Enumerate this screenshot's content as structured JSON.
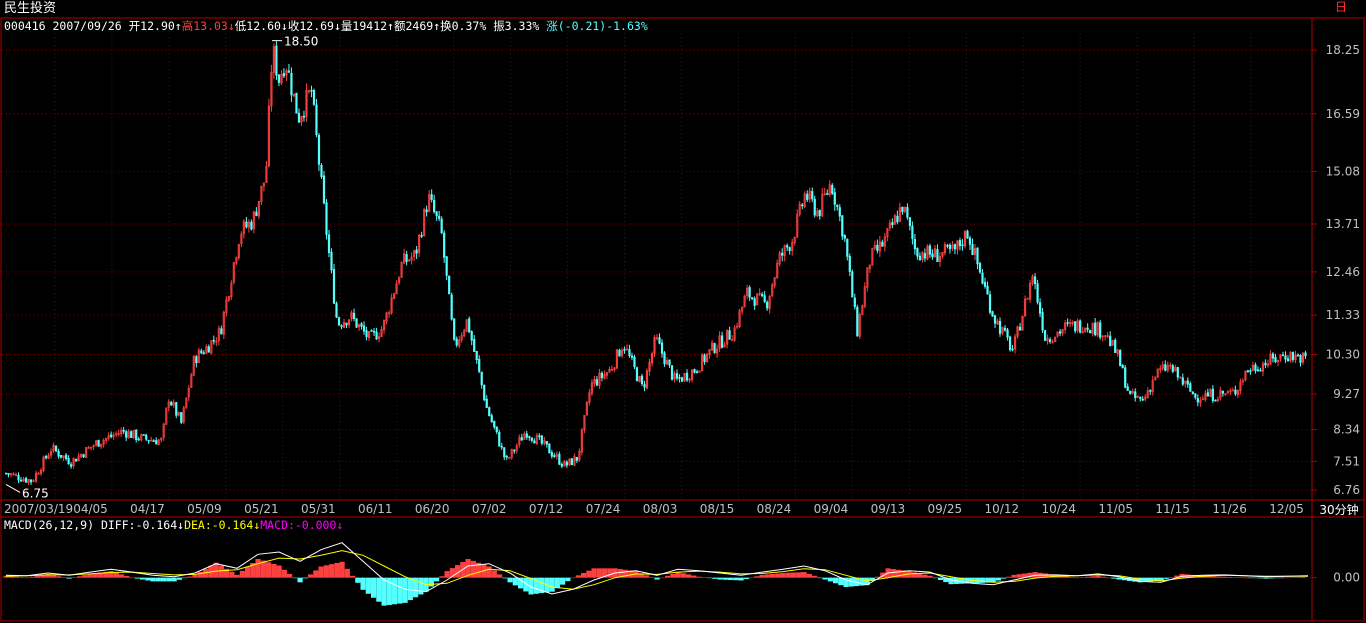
{
  "header": {
    "stock_name": "民生投资",
    "code": "000416",
    "date": "2007/09/26",
    "open_label": "开12.90",
    "high_label": "高13.03",
    "low_label": "低12.60",
    "close_label": "收12.69",
    "volume_label": "量19412",
    "amount_label": "额2469",
    "turnover_label": "换0.37%",
    "amplitude_label": "振3.33%",
    "change_label": "涨(-0.21)-1.63%",
    "arrow_up": "↑",
    "arrow_down": "↓"
  },
  "macd_header": {
    "name": "MACD(26,12,9)",
    "diff_label": "DIFF:-0.164",
    "dea_label": "DEA:-0.164",
    "macd_label": "MACD:-0.000",
    "arrow_down": "↓"
  },
  "controls": {
    "corner_label": "日",
    "period_label": "30分钟"
  },
  "colors": {
    "background": "#000000",
    "frame": "#b00000",
    "grid": "#7a0000",
    "up": "#ff4040",
    "down": "#54ffff",
    "axis_text": "#c0c0c0",
    "diff_line": "#ffffff",
    "dea_line": "#ffff00",
    "macd_label": "#ff00ff",
    "header_yellow": "#ffff00",
    "header_cyan": "#54ffff"
  },
  "chart_data": [
    {
      "type": "candlestick",
      "ylim": [
        6.5,
        18.7
      ],
      "y_ticks": [
        18.25,
        16.59,
        15.08,
        13.71,
        12.46,
        11.33,
        10.3,
        9.27,
        8.34,
        7.51,
        6.76
      ],
      "y_tick_labels": [
        "18.25",
        "16.59",
        "15.08",
        "13.71",
        "12.46",
        "11.33",
        "10.30",
        "9.27",
        "8.34",
        "7.51",
        "6.76"
      ],
      "x_tick_labels": [
        "2007/03/19",
        "04/05",
        "04/17",
        "05/09",
        "05/21",
        "05/31",
        "06/11",
        "06/20",
        "07/02",
        "07/12",
        "07/24",
        "08/03",
        "08/15",
        "08/24",
        "09/04",
        "09/13",
        "09/25",
        "10/12",
        "10/24",
        "11/05",
        "11/15",
        "11/26",
        "12/05"
      ],
      "annotations": [
        {
          "text": "18.50",
          "value": 18.5,
          "date": "05/21"
        },
        {
          "text": "6.75",
          "value": 6.75,
          "date": "2007/03/19"
        }
      ],
      "path": [
        {
          "x": 0,
          "y": 7.2
        },
        {
          "x": 0.02,
          "y": 7.0
        },
        {
          "x": 0.035,
          "y": 7.85
        },
        {
          "x": 0.05,
          "y": 7.5
        },
        {
          "x": 0.07,
          "y": 8.0
        },
        {
          "x": 0.09,
          "y": 8.3
        },
        {
          "x": 0.105,
          "y": 8.1
        },
        {
          "x": 0.12,
          "y": 8.05
        },
        {
          "x": 0.125,
          "y": 9.2
        },
        {
          "x": 0.135,
          "y": 8.5
        },
        {
          "x": 0.145,
          "y": 10.2
        },
        {
          "x": 0.155,
          "y": 10.5
        },
        {
          "x": 0.165,
          "y": 10.9
        },
        {
          "x": 0.18,
          "y": 13.5
        },
        {
          "x": 0.19,
          "y": 13.8
        },
        {
          "x": 0.2,
          "y": 15.0
        },
        {
          "x": 0.205,
          "y": 18.3
        },
        {
          "x": 0.21,
          "y": 17.5
        },
        {
          "x": 0.215,
          "y": 18.0
        },
        {
          "x": 0.225,
          "y": 16.5
        },
        {
          "x": 0.235,
          "y": 17.2
        },
        {
          "x": 0.245,
          "y": 14.0
        },
        {
          "x": 0.25,
          "y": 12.5
        },
        {
          "x": 0.255,
          "y": 11.1
        },
        {
          "x": 0.265,
          "y": 11.3
        },
        {
          "x": 0.28,
          "y": 10.7
        },
        {
          "x": 0.29,
          "y": 11.0
        },
        {
          "x": 0.305,
          "y": 12.7
        },
        {
          "x": 0.315,
          "y": 12.9
        },
        {
          "x": 0.325,
          "y": 14.4
        },
        {
          "x": 0.335,
          "y": 13.5
        },
        {
          "x": 0.345,
          "y": 10.5
        },
        {
          "x": 0.355,
          "y": 11.2
        },
        {
          "x": 0.37,
          "y": 8.9
        },
        {
          "x": 0.385,
          "y": 7.5
        },
        {
          "x": 0.4,
          "y": 8.3
        },
        {
          "x": 0.415,
          "y": 7.9
        },
        {
          "x": 0.43,
          "y": 7.4
        },
        {
          "x": 0.44,
          "y": 7.6
        },
        {
          "x": 0.45,
          "y": 9.5
        },
        {
          "x": 0.465,
          "y": 9.9
        },
        {
          "x": 0.475,
          "y": 10.6
        },
        {
          "x": 0.49,
          "y": 9.4
        },
        {
          "x": 0.5,
          "y": 10.7
        },
        {
          "x": 0.515,
          "y": 9.6
        },
        {
          "x": 0.53,
          "y": 9.9
        },
        {
          "x": 0.545,
          "y": 10.5
        },
        {
          "x": 0.56,
          "y": 10.9
        },
        {
          "x": 0.57,
          "y": 11.9
        },
        {
          "x": 0.585,
          "y": 11.6
        },
        {
          "x": 0.595,
          "y": 12.8
        },
        {
          "x": 0.605,
          "y": 13.3
        },
        {
          "x": 0.615,
          "y": 14.5
        },
        {
          "x": 0.625,
          "y": 14.0
        },
        {
          "x": 0.635,
          "y": 14.8
        },
        {
          "x": 0.645,
          "y": 13.4
        },
        {
          "x": 0.655,
          "y": 10.9
        },
        {
          "x": 0.665,
          "y": 12.8
        },
        {
          "x": 0.675,
          "y": 13.2
        },
        {
          "x": 0.69,
          "y": 14.2
        },
        {
          "x": 0.7,
          "y": 13.0
        },
        {
          "x": 0.715,
          "y": 12.9
        },
        {
          "x": 0.73,
          "y": 13.0
        },
        {
          "x": 0.74,
          "y": 13.5
        },
        {
          "x": 0.75,
          "y": 12.4
        },
        {
          "x": 0.76,
          "y": 11.3
        },
        {
          "x": 0.775,
          "y": 10.4
        },
        {
          "x": 0.79,
          "y": 12.4
        },
        {
          "x": 0.8,
          "y": 10.7
        },
        {
          "x": 0.815,
          "y": 11.0
        },
        {
          "x": 0.83,
          "y": 11.1
        },
        {
          "x": 0.845,
          "y": 10.9
        },
        {
          "x": 0.855,
          "y": 10.3
        },
        {
          "x": 0.865,
          "y": 9.2
        },
        {
          "x": 0.875,
          "y": 9.1
        },
        {
          "x": 0.885,
          "y": 9.8
        },
        {
          "x": 0.895,
          "y": 10.0
        },
        {
          "x": 0.905,
          "y": 9.6
        },
        {
          "x": 0.915,
          "y": 9.2
        },
        {
          "x": 0.93,
          "y": 9.25
        },
        {
          "x": 0.945,
          "y": 9.3
        },
        {
          "x": 0.955,
          "y": 9.9
        },
        {
          "x": 0.97,
          "y": 10.1
        },
        {
          "x": 0.985,
          "y": 10.3
        },
        {
          "x": 1.0,
          "y": 10.2
        }
      ]
    },
    {
      "type": "macd",
      "ylim": [
        -0.8,
        1.0
      ],
      "y_ticks": [
        0.0
      ],
      "y_tick_labels": [
        "0.00"
      ],
      "series": [
        {
          "name": "DIFF",
          "values": [
            0.05,
            0.04,
            0.1,
            0.05,
            0.12,
            0.18,
            0.12,
            0.05,
            0.02,
            0.1,
            0.3,
            0.2,
            0.5,
            0.55,
            0.35,
            0.6,
            0.75,
            0.35,
            -0.05,
            -0.25,
            -0.3,
            -0.05,
            0.25,
            0.3,
            0.1,
            -0.2,
            -0.35,
            -0.25,
            -0.05,
            0.1,
            0.15,
            0.05,
            0.18,
            0.15,
            0.1,
            0.05,
            0.12,
            0.18,
            0.25,
            0.15,
            -0.05,
            -0.15,
            0.1,
            0.15,
            0.12,
            -0.05,
            -0.12,
            -0.15,
            -0.05,
            0.05,
            0.06,
            0.04,
            0.08,
            0.02,
            -0.08,
            -0.1,
            0.03,
            0.05,
            0.06,
            0.04,
            0.02,
            0.03,
            0.04
          ]
        },
        {
          "name": "DEA",
          "values": [
            0.03,
            0.04,
            0.06,
            0.06,
            0.08,
            0.11,
            0.12,
            0.09,
            0.06,
            0.07,
            0.14,
            0.17,
            0.3,
            0.42,
            0.4,
            0.48,
            0.58,
            0.48,
            0.25,
            0.02,
            -0.15,
            -0.12,
            0.05,
            0.18,
            0.15,
            -0.02,
            -0.2,
            -0.25,
            -0.15,
            0.0,
            0.08,
            0.07,
            0.12,
            0.14,
            0.12,
            0.08,
            0.09,
            0.13,
            0.19,
            0.17,
            0.05,
            -0.07,
            0.0,
            0.08,
            0.1,
            0.02,
            -0.06,
            -0.1,
            -0.08,
            -0.01,
            0.03,
            0.04,
            0.06,
            0.04,
            -0.03,
            -0.07,
            -0.01,
            0.03,
            0.05,
            0.04,
            0.03,
            0.03,
            0.03
          ]
        }
      ]
    }
  ]
}
